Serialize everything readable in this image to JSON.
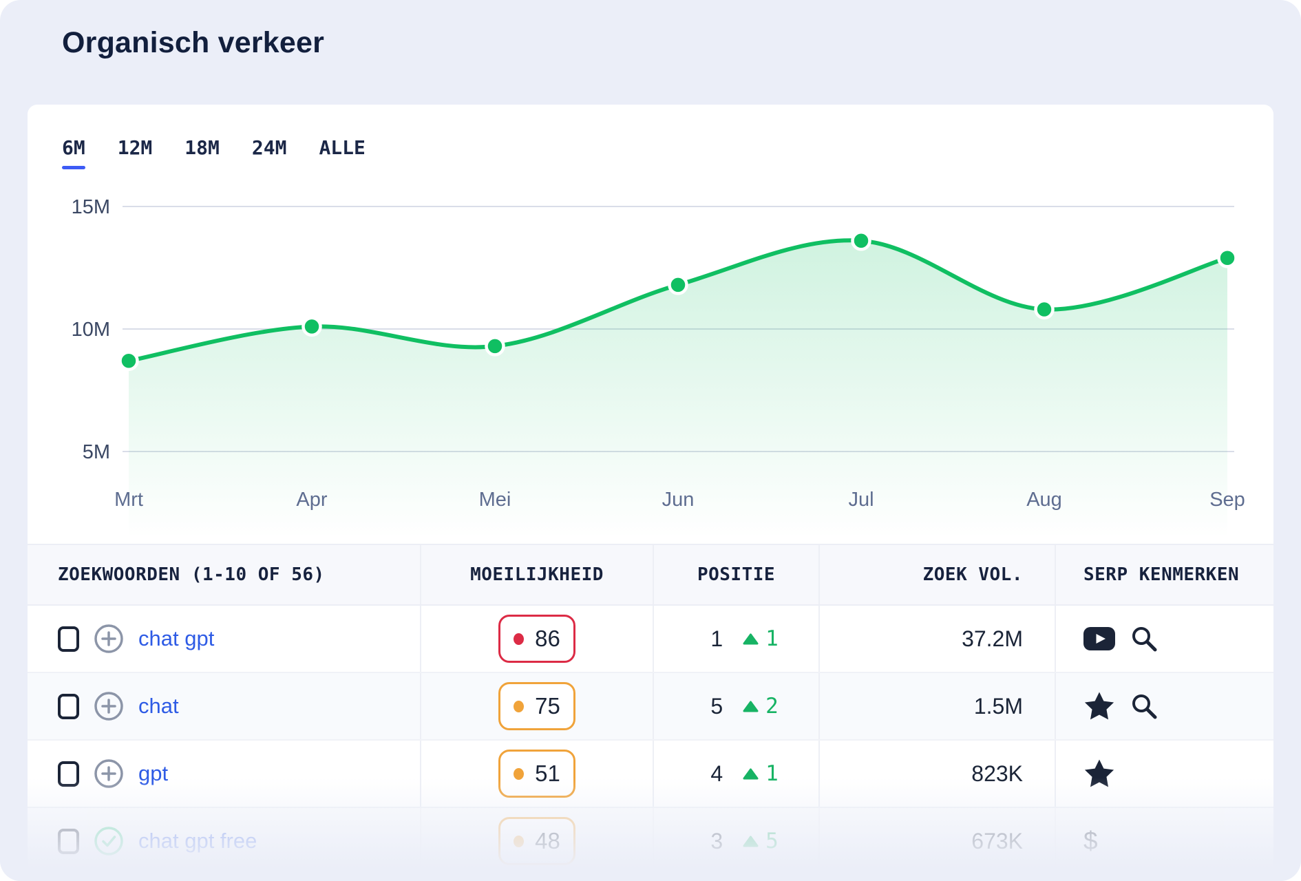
{
  "page": {
    "title": "Organisch verkeer"
  },
  "tabs": [
    {
      "label": "6M",
      "active": true
    },
    {
      "label": "12M",
      "active": false
    },
    {
      "label": "18M",
      "active": false
    },
    {
      "label": "24M",
      "active": false
    },
    {
      "label": "ALLE",
      "active": false
    }
  ],
  "chart_data": {
    "type": "area",
    "title": "Organisch verkeer (6M)",
    "x": [
      "Mrt",
      "Apr",
      "Mei",
      "Jun",
      "Jul",
      "Aug",
      "Sep"
    ],
    "series": [
      {
        "name": "Organisch verkeer",
        "values": [
          8.7,
          10.1,
          9.3,
          11.8,
          13.6,
          10.8,
          12.9
        ]
      }
    ],
    "unit": "M",
    "yticks": [
      {
        "label": "15M",
        "value": 15
      },
      {
        "label": "10M",
        "value": 10
      },
      {
        "label": "5M",
        "value": 5
      }
    ],
    "ylim": [
      5,
      15
    ],
    "grid": "horizontal",
    "legend": "none"
  },
  "table": {
    "columns": [
      "ZOEKWOORDEN (1-10 OF 56)",
      "MOEILIJKHEID",
      "POSITIE",
      "ZOEK VOL.",
      "SERP KENMERKEN"
    ],
    "rows": [
      {
        "keyword": "chat gpt",
        "row_icon": "plus",
        "difficulty": "86",
        "difficulty_level": "hard",
        "position": "1",
        "change": "1",
        "volume": "37.2M",
        "serp": [
          "youtube",
          "search"
        ],
        "faded": false,
        "zebra": false
      },
      {
        "keyword": "chat",
        "row_icon": "plus",
        "difficulty": "75",
        "difficulty_level": "medium",
        "position": "5",
        "change": "2",
        "volume": "1.5M",
        "serp": [
          "star",
          "search"
        ],
        "faded": false,
        "zebra": true
      },
      {
        "keyword": "gpt",
        "row_icon": "plus",
        "difficulty": "51",
        "difficulty_level": "medium",
        "position": "4",
        "change": "1",
        "volume": "823K",
        "serp": [
          "star"
        ],
        "faded": false,
        "zebra": false
      },
      {
        "keyword": "chat gpt free",
        "row_icon": "check",
        "difficulty": "48",
        "difficulty_level": "medium",
        "position": "3",
        "change": "5",
        "volume": "673K",
        "serp": [
          "dollar"
        ],
        "faded": true,
        "zebra": true
      }
    ]
  },
  "icons": {
    "dollar_glyph": "$"
  },
  "colors": {
    "page_bg": "#ebeef8",
    "card_bg": "#ffffff",
    "title": "#121f3d",
    "accent_blue": "#3d5bf5",
    "link_blue": "#2e5be5",
    "line_green": "#10bf62",
    "delta_green": "#17b364",
    "navy_icon": "#1b2437",
    "gray_icon": "#8c95a8",
    "check_green": "#3ecd8b",
    "grid_line": "#d9dde8",
    "ytick_label": "#3a4763",
    "month_label": "#5e6d90",
    "difficulty_hard": "#dc2b45",
    "difficulty_medium": "#f0a33a"
  }
}
